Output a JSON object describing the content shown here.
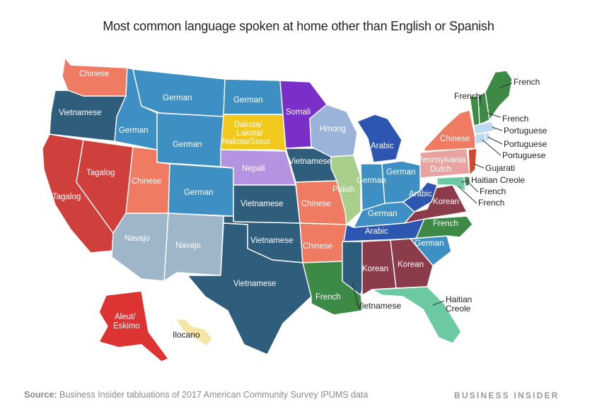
{
  "title": "Most common language spoken at home other than English or Spanish",
  "source_label": "Source:",
  "source_text": "Business Insider tabluations of 2017 American Community Survey IPUMS data",
  "brand": "BUSINESS INSIDER",
  "colors": {
    "Chinese": "#ee7b62",
    "Vietnamese": "#2f5d7c",
    "German": "#3d8fc4",
    "Tagalog": "#cf3f3c",
    "Somali": "#7a2fc8",
    "Dakota/Lakota/Nakota/Sioux": "#f2c81d",
    "Nepali": "#b493e0",
    "Hmong": "#9cb3d9",
    "Arabic": "#2d56b0",
    "Polish": "#a9cf8c",
    "Pennsylvania Dutch": "#e8a3a0",
    "Navajo": "#9fb6c9",
    "Korean": "#8c3b4a",
    "French": "#3c8a45",
    "Portuguese": "#bcd9ef",
    "Gujarati": "#d24a2a",
    "Haitian Creole": "#6ccaa2",
    "Aleut/Eskimo": "#dd3333",
    "Ilocano": "#f5e6a8"
  },
  "labels": {
    "wa": "Chinese",
    "or": "Vietnamese",
    "ca1": "Tagalog",
    "ca2": "Tagalog",
    "nv": "Tagalog",
    "id": "German",
    "mt": "German",
    "wy": "German",
    "ut": "Chinese",
    "co": "German",
    "az": "Navajo",
    "nm": "Navajo",
    "nd": "German",
    "sd1": "Dakota/",
    "sd2": "Lakota/",
    "sd3": "Nakota/Sioux",
    "ne": "Nepali",
    "ks": "Vietnamese",
    "ok": "Vietnamese",
    "tx": "Vietnamese",
    "mn": "Somali",
    "ia": "Vietnamese",
    "mo": "Chinese",
    "ar": "Chinese",
    "la": "French",
    "wi": "Hmong",
    "il": "Polish",
    "mi": "Arabic",
    "in": "German",
    "oh": "German",
    "ky": "German",
    "tn": "Arabic",
    "ms_al": "Vietnamese",
    "al": "Korean",
    "ga": "Korean",
    "fl1": "Haitian",
    "fl2": "Creole",
    "sc": "German",
    "nc": "French",
    "va": "Korean",
    "wv": "Arabic",
    "pa1": "Pennsylvania",
    "pa2": "Dutch",
    "ny": "Chinese",
    "vt": "French",
    "nh": "French",
    "me": "French",
    "ma": "Portuguese",
    "ri": "Portuguese",
    "ct": "Portuguese",
    "nj": "Gujarati",
    "md": "Haitian Creole",
    "de": "French",
    "dc": "French",
    "ak1": "Aleut/",
    "ak2": "Eskimo",
    "hi": "Ilocano"
  }
}
